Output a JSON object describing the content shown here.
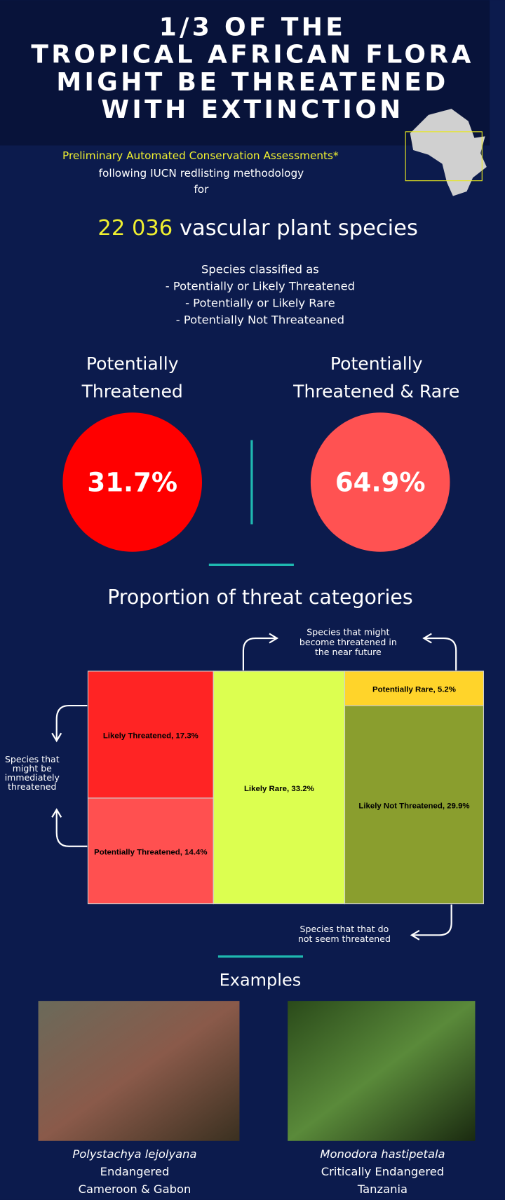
{
  "header": {
    "title_lines": [
      "1/3 OF THE",
      "TROPICAL AFRICAN FLORA",
      "MIGHT BE THREATENED",
      "WITH EXTINCTION"
    ]
  },
  "intro": {
    "highlight": "Preliminary Automated Conservation Assessments*",
    "lines": [
      "following IUCN redlisting methodology",
      "for"
    ]
  },
  "headline": {
    "number": "22 036",
    "text": "vascular plant species"
  },
  "classification": [
    "Species classified as",
    "- Potentially or Likely Threatened",
    "- Potentially or Likely Rare",
    "- Potentially Not Threateaned"
  ],
  "stats": [
    {
      "label_lines": [
        "Potentially",
        "Threatened"
      ],
      "value": "31.7%"
    },
    {
      "label_lines": [
        "Potentially",
        "Threatened & Rare"
      ],
      "value": "64.9%"
    }
  ],
  "treemap": {
    "title": "Proportion of threat categories",
    "columns": [
      [
        {
          "label": "Likely Threatened, 17.3%",
          "value": 17.3,
          "color": "#ff2424"
        },
        {
          "label": "Potentially Threatened, 14.4%",
          "value": 14.4,
          "color": "#ff5050"
        }
      ],
      [
        {
          "label": "Likely Rare, 33.2%",
          "value": 33.2,
          "color": "#dcff50"
        }
      ],
      [
        {
          "label": "Potentially Rare, 5.2%",
          "value": 5.2,
          "color": "#ffd42a"
        },
        {
          "label": "Likely Not Threatened, 29.9%",
          "value": 29.9,
          "color": "#8a9e2e"
        }
      ]
    ],
    "annotations": {
      "top": [
        "Species that might",
        "become threatened in",
        "the near future"
      ],
      "left": [
        "Species that",
        "might be",
        "immediately",
        "threatened"
      ],
      "bottom": [
        "Species that that do",
        "not seem threatened"
      ]
    }
  },
  "examples": {
    "title": "Examples",
    "items": [
      {
        "name": "Polystachya lejolyana",
        "status": "Endangered",
        "region": "Cameroon & Gabon"
      },
      {
        "name": "Monodora hastipetala",
        "status": "Critically Endangered",
        "region": "Tanzania"
      }
    ]
  }
}
